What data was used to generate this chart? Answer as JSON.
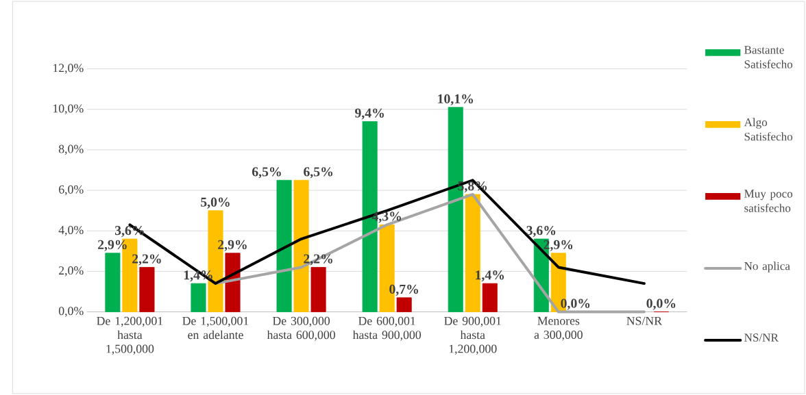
{
  "chart_data": {
    "type": "bar",
    "categories": [
      "De 1,200,001 hasta 1,500,000",
      "De 1,500,001 en adelante",
      "De 300,000 hasta 600,000",
      "De 600,001 hasta 900,000",
      "De 900,001 hasta 1,200,000",
      "Menores a 300,000",
      "NS/NR"
    ],
    "series": [
      {
        "name": "Bastante Satisfecho",
        "color": "#00b050",
        "values": [
          2.9,
          1.4,
          6.5,
          9.4,
          10.1,
          3.6,
          null
        ],
        "value_labels": [
          "2,9%",
          "1,4%",
          "6,5%",
          "9,4%",
          "10,1%",
          "3,6%",
          null
        ]
      },
      {
        "name": "Algo Satisfecho",
        "color": "#ffc000",
        "values": [
          3.6,
          5.0,
          6.5,
          4.3,
          5.8,
          2.9,
          null
        ],
        "value_labels": [
          "3,6%",
          "5,0%",
          "6,5%",
          "4,3%",
          "5,8%",
          "2,9%",
          null
        ]
      },
      {
        "name": "Muy poco satisfecho",
        "color": "#c00000",
        "values": [
          2.2,
          2.9,
          2.2,
          0.7,
          1.4,
          0.0,
          0.0
        ],
        "value_labels": [
          "2,2%",
          "2,9%",
          "2,2%",
          "0,7%",
          "1,4%",
          "0,0%",
          "0,0%"
        ]
      },
      {
        "name": "No aplica",
        "type": "line",
        "color": "#a5a5a5",
        "values": [
          null,
          1.4,
          2.2,
          4.3,
          5.8,
          0.0,
          0.0
        ]
      },
      {
        "name": "NS/NR",
        "type": "line",
        "color": "#000000",
        "values": [
          4.3,
          1.4,
          3.6,
          5.0,
          6.5,
          2.2,
          1.4
        ]
      }
    ],
    "ylim": [
      0,
      12
    ],
    "yticks": [
      {
        "value": 0,
        "label": "0,0%"
      },
      {
        "value": 2,
        "label": "2,0%"
      },
      {
        "value": 4,
        "label": "4,0%"
      },
      {
        "value": 6,
        "label": "6,0%"
      },
      {
        "value": 8,
        "label": "8,0%"
      },
      {
        "value": 10,
        "label": "10,0%"
      },
      {
        "value": 12,
        "label": "12,0%"
      }
    ],
    "grid": "y",
    "legend": "right"
  }
}
